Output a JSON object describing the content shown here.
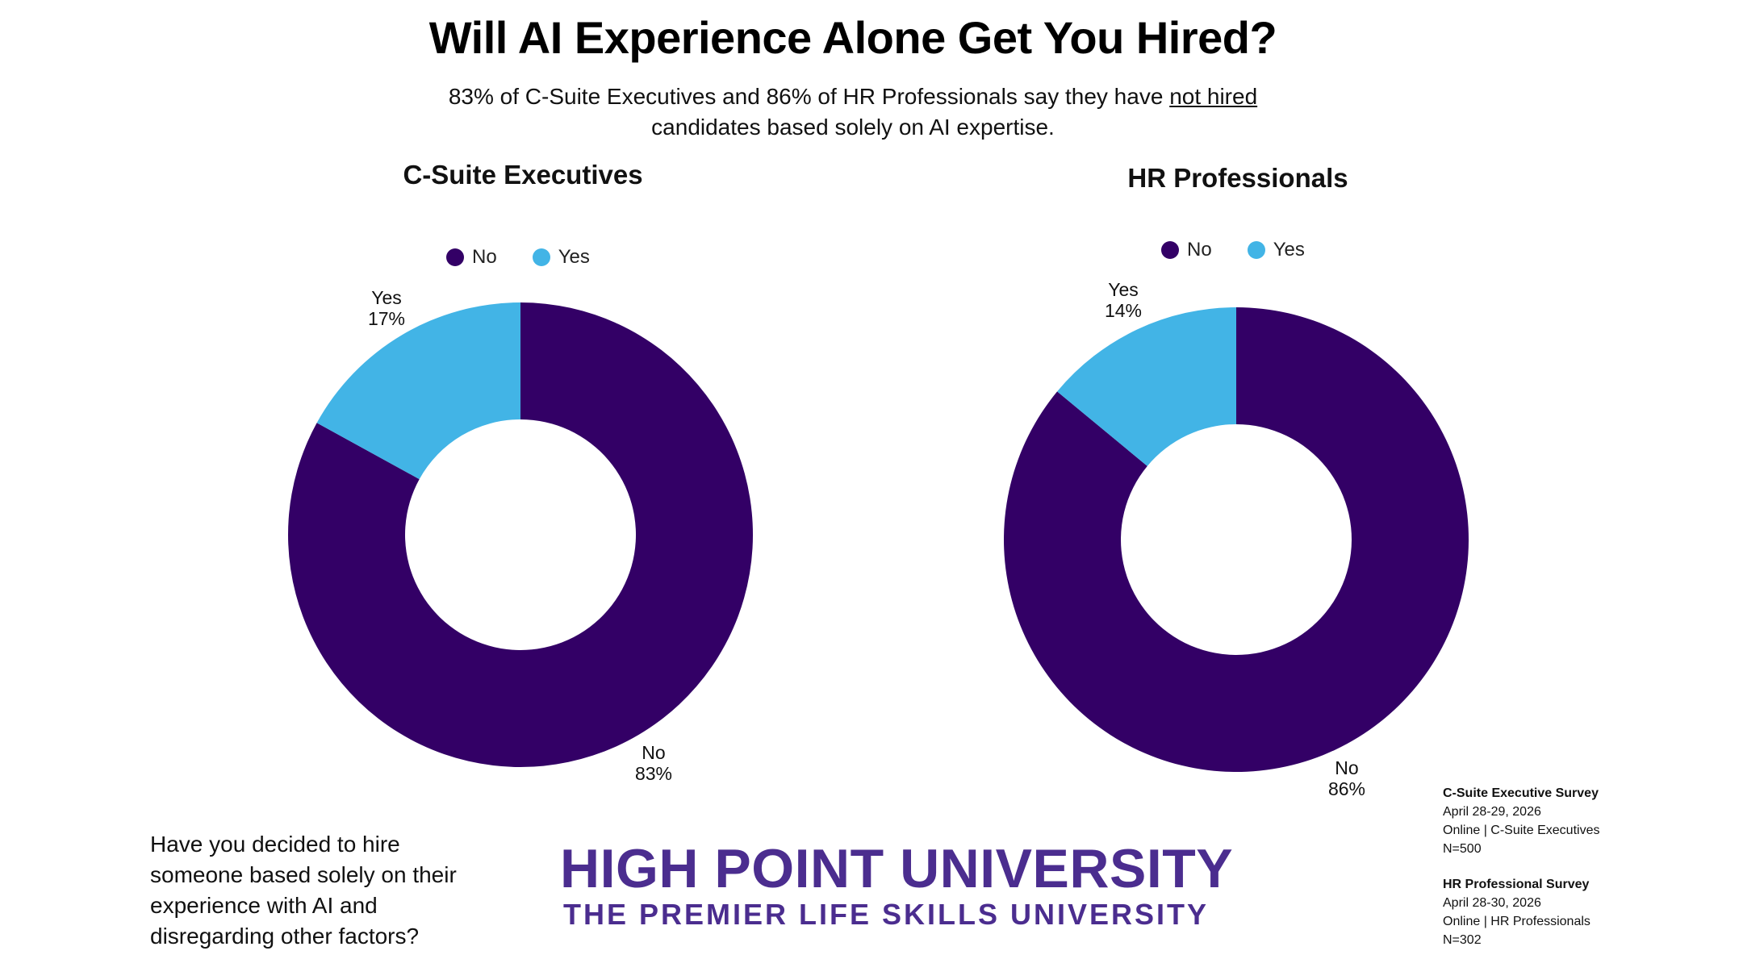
{
  "title": "Will AI Experience Alone Get You Hired?",
  "subtitle": {
    "line1_before": "83% of C-Suite Executives and 86% of HR Professionals say they have ",
    "line1_underlined": "not hired",
    "line2": "candidates based solely on AI expertise."
  },
  "colors": {
    "no": "#330066",
    "yes": "#42b4e6",
    "brand": "#4b2d8f"
  },
  "chart_data": [
    {
      "type": "pie",
      "title": "C-Suite Executives",
      "legend": [
        "No",
        "Yes"
      ],
      "legend_position": "top",
      "slices": [
        {
          "name": "No",
          "value": 83,
          "label_name": "No",
          "label_value": "83%"
        },
        {
          "name": "Yes",
          "value": 17,
          "label_name": "Yes",
          "label_value": "17%"
        }
      ]
    },
    {
      "type": "pie",
      "title": "HR Professionals",
      "legend": [
        "No",
        "Yes"
      ],
      "legend_position": "top",
      "slices": [
        {
          "name": "No",
          "value": 86,
          "label_name": "No",
          "label_value": "86%"
        },
        {
          "name": "Yes",
          "value": 14,
          "label_name": "Yes",
          "label_value": "14%"
        }
      ]
    }
  ],
  "question": "Have you decided to hire someone based solely on their experience with AI and disregarding other factors?",
  "brand": {
    "name": "HIGH POINT UNIVERSITY",
    "tagline": "THE PREMIER LIFE SKILLS UNIVERSITY"
  },
  "survey_notes": {
    "csuite": {
      "heading": "C-Suite Executive Survey",
      "dates": "April 28-29, 2026",
      "method": "Online | C-Suite Executives",
      "n": "N=500"
    },
    "hr": {
      "heading": "HR Professional Survey",
      "dates": "April 28-30, 2026",
      "method": "Online | HR Professionals",
      "n": "N=302"
    }
  }
}
